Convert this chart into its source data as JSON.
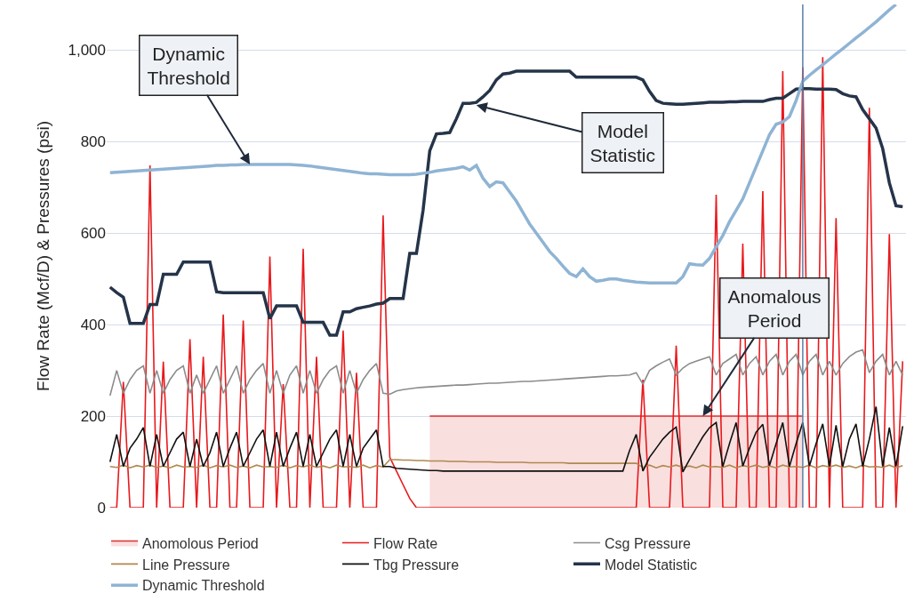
{
  "chart_data": {
    "type": "line",
    "ylabel": "Flow Rate (Mcf/D) & Pressures (psi)",
    "categories": [
      null,
      null,
      null,
      null,
      null,
      null,
      null,
      null,
      null,
      null,
      null,
      null,
      null,
      null,
      null,
      null,
      null,
      null,
      null,
      null,
      null,
      null,
      null,
      null,
      null,
      null,
      null,
      null,
      null,
      null,
      null,
      null,
      null,
      null,
      null,
      null,
      null,
      null,
      null,
      null,
      null,
      null,
      null,
      null,
      null,
      null,
      null,
      null,
      null,
      null,
      null,
      null,
      null,
      null,
      null,
      null,
      null,
      null,
      null,
      null,
      null,
      null,
      null,
      null,
      null,
      null,
      null,
      null,
      null,
      null,
      null,
      null,
      null,
      null,
      null,
      null,
      null,
      null,
      null,
      null,
      null,
      null,
      null,
      null,
      null,
      null,
      null,
      null,
      null,
      null,
      null,
      null,
      null,
      null,
      null,
      null,
      null,
      null,
      null,
      null,
      null,
      null,
      null,
      null,
      null,
      null,
      null,
      null,
      null,
      null,
      null,
      null,
      null,
      null,
      null,
      null,
      null,
      null,
      null,
      null
    ],
    "ylim": [
      0,
      1100
    ],
    "yticks": [
      0,
      200,
      400,
      600,
      800,
      {
        "value": 1000,
        "label": "1,000"
      }
    ],
    "grid": "y",
    "legend": "bottom",
    "tick_labels": "y",
    "marker": "none",
    "series": [
      {
        "name": "Anomolous Period",
        "type": "area",
        "color": "#e03030",
        "values": [
          null,
          null,
          null,
          null,
          null,
          null,
          null,
          null,
          null,
          null,
          null,
          null,
          null,
          null,
          null,
          null,
          null,
          null,
          null,
          null,
          null,
          null,
          null,
          null,
          null,
          null,
          null,
          null,
          null,
          null,
          null,
          null,
          null,
          null,
          null,
          null,
          null,
          null,
          null,
          null,
          null,
          null,
          null,
          null,
          null,
          null,
          null,
          null,
          200,
          200,
          200,
          200,
          200,
          200,
          200,
          200,
          200,
          200,
          200,
          200,
          200,
          200,
          200,
          200,
          200,
          200,
          200,
          200,
          200,
          200,
          200,
          200,
          200,
          200,
          200,
          200,
          200,
          200,
          200,
          200,
          200,
          200,
          200,
          200,
          200,
          200,
          200,
          200,
          200,
          200,
          200,
          200,
          200,
          200,
          200,
          200,
          200,
          200,
          200,
          200,
          200,
          200,
          200,
          200,
          200,
          null,
          null,
          null,
          null,
          null,
          null,
          null,
          null,
          null,
          null,
          null,
          null,
          null,
          null,
          null
        ]
      },
      {
        "name": "Flow Rate",
        "color": "#e8191c",
        "values": [
          0,
          0,
          275,
          0,
          0,
          0,
          748,
          0,
          319,
          0,
          0,
          0,
          368,
          0,
          330,
          0,
          0,
          422,
          0,
          0,
          409,
          0,
          0,
          0,
          549,
          0,
          270,
          0,
          0,
          566,
          0,
          330,
          0,
          0,
          0,
          387,
          0,
          295,
          0,
          0,
          0,
          639,
          110,
          80,
          50,
          20,
          0,
          0,
          0,
          0,
          0,
          0,
          0,
          0,
          0,
          0,
          0,
          0,
          0,
          0,
          0,
          0,
          0,
          0,
          0,
          0,
          0,
          0,
          0,
          0,
          0,
          0,
          0,
          0,
          0,
          0,
          0,
          0,
          0,
          0,
          280,
          0,
          0,
          0,
          0,
          354,
          0,
          0,
          0,
          0,
          0,
          684,
          0,
          0,
          0,
          577,
          0,
          0,
          692,
          0,
          0,
          954,
          0,
          0,
          963,
          0,
          0,
          985,
          0,
          633,
          0,
          0,
          0,
          0,
          874,
          0,
          0,
          598,
          0,
          320
        ]
      },
      {
        "name": "Csg Pressure",
        "color": "#8c8c8c",
        "values": [
          245,
          300,
          250,
          280,
          300,
          310,
          250,
          300,
          250,
          280,
          300,
          310,
          250,
          290,
          250,
          280,
          310,
          250,
          280,
          310,
          250,
          280,
          300,
          315,
          250,
          300,
          250,
          290,
          310,
          250,
          300,
          250,
          280,
          300,
          310,
          250,
          300,
          250,
          280,
          300,
          315,
          250,
          248,
          255,
          258,
          260,
          262,
          263,
          264,
          265,
          266,
          267,
          268,
          268,
          269,
          270,
          271,
          272,
          272,
          273,
          274,
          275,
          276,
          276,
          277,
          278,
          279,
          280,
          281,
          282,
          283,
          284,
          285,
          286,
          287,
          288,
          288,
          289,
          290,
          295,
          270,
          300,
          310,
          318,
          325,
          290,
          305,
          315,
          320,
          325,
          330,
          290,
          315,
          325,
          335,
          290,
          315,
          330,
          290,
          320,
          335,
          290,
          320,
          335,
          290,
          320,
          335,
          290,
          320,
          290,
          315,
          330,
          340,
          345,
          295,
          320,
          335,
          290,
          320,
          290
        ]
      },
      {
        "name": "Line Pressure",
        "color": "#b08850",
        "values": [
          90,
          88,
          93,
          87,
          92,
          89,
          93,
          88,
          91,
          87,
          93,
          89,
          90,
          88,
          93,
          87,
          92,
          89,
          93,
          88,
          91,
          87,
          93,
          89,
          90,
          88,
          93,
          87,
          92,
          89,
          93,
          88,
          91,
          87,
          93,
          89,
          90,
          88,
          93,
          87,
          92,
          89,
          105,
          105,
          104,
          104,
          103,
          103,
          102,
          102,
          102,
          101,
          101,
          101,
          100,
          100,
          100,
          100,
          99,
          99,
          99,
          99,
          99,
          98,
          98,
          98,
          98,
          98,
          98,
          97,
          97,
          97,
          97,
          97,
          97,
          97,
          97,
          97,
          97,
          97,
          88,
          93,
          87,
          92,
          89,
          93,
          88,
          91,
          87,
          93,
          89,
          90,
          88,
          93,
          87,
          92,
          89,
          93,
          88,
          91,
          87,
          93,
          89,
          90,
          88,
          93,
          87,
          92,
          89,
          93,
          88,
          91,
          87,
          93,
          89,
          90,
          88,
          93,
          87,
          92
        ]
      },
      {
        "name": "Tbg Pressure",
        "color": "#111111",
        "values": [
          100,
          160,
          90,
          130,
          150,
          175,
          90,
          160,
          90,
          120,
          150,
          165,
          90,
          150,
          90,
          120,
          165,
          90,
          130,
          165,
          90,
          120,
          150,
          170,
          90,
          165,
          90,
          130,
          165,
          90,
          160,
          90,
          120,
          150,
          170,
          90,
          160,
          90,
          130,
          150,
          170,
          90,
          90,
          86,
          85,
          84,
          83,
          82,
          81,
          81,
          80,
          80,
          80,
          80,
          80,
          80,
          80,
          80,
          80,
          80,
          80,
          80,
          80,
          80,
          80,
          80,
          80,
          80,
          80,
          80,
          80,
          80,
          80,
          80,
          80,
          80,
          80,
          80,
          125,
          160,
          80,
          110,
          130,
          150,
          165,
          176,
          78,
          105,
          130,
          155,
          175,
          186,
          90,
          140,
          186,
          91,
          130,
          165,
          182,
          92,
          140,
          186,
          90,
          140,
          186,
          91,
          140,
          183,
          90,
          180,
          90,
          150,
          183,
          90,
          150,
          221,
          90,
          175,
          90,
          178
        ]
      },
      {
        "name": "Model Statistic",
        "color": "#253449",
        "values": [
          482,
          470,
          460,
          403,
          403,
          403,
          444,
          444,
          510,
          510,
          510,
          537,
          537,
          537,
          537,
          537,
          472,
          470,
          470,
          470,
          470,
          470,
          470,
          470,
          413,
          441,
          441,
          441,
          441,
          405,
          405,
          405,
          405,
          377,
          377,
          428,
          428,
          435,
          438,
          441,
          445,
          447,
          457,
          457,
          457,
          556,
          556,
          650,
          780,
          817,
          818,
          820,
          850,
          884,
          884,
          886,
          898,
          912,
          935,
          948,
          950,
          954,
          954,
          954,
          954,
          954,
          954,
          954,
          954,
          954,
          941,
          941,
          941,
          941,
          941,
          941,
          941,
          941,
          941,
          941,
          935,
          910,
          890,
          884,
          883,
          882,
          882,
          883,
          884,
          885,
          886,
          886,
          886,
          887,
          887,
          888,
          888,
          888,
          888,
          892,
          895,
          895,
          905,
          915,
          916,
          916,
          915,
          915,
          915,
          914,
          905,
          900,
          898,
          870,
          850,
          830,
          785,
          710,
          660,
          658
        ]
      },
      {
        "name": "Dynamic Threshold",
        "color": "#8fb4d4",
        "values": [
          732,
          733,
          734,
          735,
          736,
          737,
          738,
          739,
          740,
          741,
          742,
          743,
          744,
          745,
          746,
          747,
          748,
          748,
          749,
          749,
          750,
          750,
          750,
          750,
          750,
          750,
          750,
          750,
          749,
          748,
          747,
          745,
          743,
          741,
          739,
          737,
          735,
          733,
          731,
          730,
          730,
          729,
          728,
          728,
          728,
          728,
          729,
          731,
          733,
          736,
          738,
          740,
          742,
          745,
          738,
          748,
          720,
          702,
          712,
          710,
          690,
          670,
          645,
          620,
          600,
          580,
          560,
          545,
          528,
          512,
          505,
          522,
          505,
          495,
          497,
          500,
          500,
          497,
          495,
          493,
          492,
          491,
          491,
          491,
          491,
          491,
          505,
          533,
          531,
          530,
          545,
          570,
          595,
          625,
          650,
          675,
          710,
          745,
          780,
          815,
          838,
          843,
          855,
          890,
          932,
          945,
          957,
          968,
          980,
          992,
          1003,
          1015,
          1027,
          1038,
          1050,
          1062,
          1075,
          1088,
          1100,
          null
        ]
      }
    ],
    "annotations": [
      "Dynamic\nThreshold",
      "Model\nStatistic",
      "Anomalous\nPeriod"
    ]
  }
}
